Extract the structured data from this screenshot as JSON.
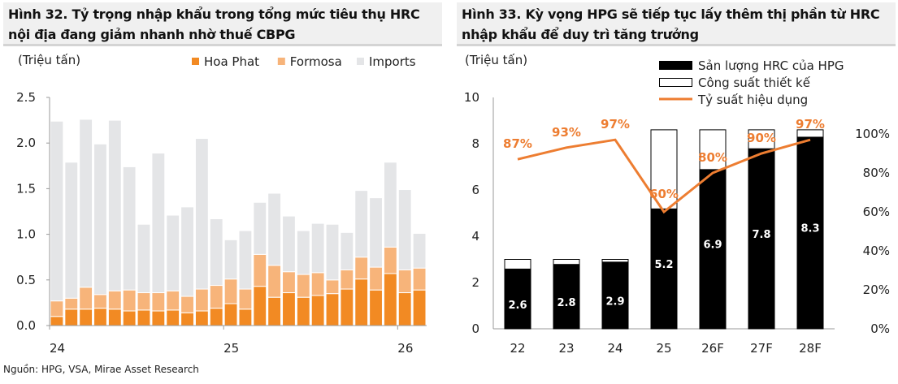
{
  "left": {
    "title_line1": "Hình 32. Tỷ trọng nhập khẩu trong tổng mức tiêu thụ HRC",
    "title_line2": "nội địa đang giảm nhanh nhờ thuế CBPG"
  },
  "right": {
    "title_line1": "Hình 33. Kỳ vọng HPG sẽ tiếp tục lấy thêm thị phần từ HRC",
    "title_line2": "nhập khẩu để duy trì tăng trưởng"
  },
  "source": "Nguồn: HPG, VSA, Mirae Asset Research",
  "chart_data": [
    {
      "type": "bar",
      "stacked": true,
      "ylabel": "(Triệu tấn)",
      "ylim": [
        0,
        2.5
      ],
      "yticks": [
        "0.0",
        "0.5",
        "1.0",
        "1.5",
        "2.0",
        "2.5"
      ],
      "xtick_labels": [
        "24",
        "25",
        "26"
      ],
      "legend": "top",
      "colors": {
        "Hoa Phat": "#f28a23",
        "Formosa": "#f7b47a",
        "Imports": "#e4e5e7"
      },
      "categories": [
        "1/24",
        "2/24",
        "3/24",
        "4/24",
        "5/24",
        "6/24",
        "7/24",
        "8/24",
        "9/24",
        "10/24",
        "11/24",
        "12/24",
        "1/25",
        "2/25",
        "3/25",
        "4/25",
        "5/25",
        "6/25",
        "7/25",
        "8/25",
        "9/25",
        "10/25",
        "11/25",
        "12/25",
        "1/26",
        "2/26"
      ],
      "series": [
        {
          "name": "Hoa Phat",
          "values": [
            0.1,
            0.18,
            0.18,
            0.19,
            0.18,
            0.16,
            0.17,
            0.16,
            0.17,
            0.14,
            0.16,
            0.19,
            0.24,
            0.18,
            0.43,
            0.31,
            0.36,
            0.31,
            0.33,
            0.35,
            0.4,
            0.51,
            0.39,
            0.57,
            0.36,
            0.39
          ]
        },
        {
          "name": "Formosa",
          "values": [
            0.17,
            0.12,
            0.24,
            0.15,
            0.2,
            0.23,
            0.19,
            0.2,
            0.21,
            0.18,
            0.24,
            0.25,
            0.27,
            0.22,
            0.35,
            0.35,
            0.23,
            0.25,
            0.25,
            0.15,
            0.21,
            0.24,
            0.25,
            0.29,
            0.25,
            0.24
          ]
        },
        {
          "name": "Imports",
          "values": [
            1.97,
            1.49,
            1.84,
            1.65,
            1.87,
            1.35,
            0.75,
            1.53,
            0.83,
            0.98,
            1.65,
            0.73,
            0.43,
            0.64,
            0.57,
            0.79,
            0.61,
            0.48,
            0.54,
            0.61,
            0.41,
            0.73,
            0.76,
            0.93,
            0.88,
            0.38
          ]
        }
      ]
    },
    {
      "type": "bar+line",
      "ylabel": "(Triệu tấn)",
      "ylim": [
        0,
        10
      ],
      "y2lim": [
        0,
        120
      ],
      "yticks": [
        "0",
        "2",
        "4",
        "6",
        "8",
        "10"
      ],
      "y2ticks": [
        "0%",
        "20%",
        "40%",
        "60%",
        "80%",
        "100%",
        "120%"
      ],
      "legend": "top-right",
      "categories": [
        "22",
        "23",
        "24",
        "25",
        "26F",
        "27F",
        "28F"
      ],
      "series": [
        {
          "name": "Sản lượng HRC của HPG",
          "kind": "bar",
          "color": "#000000",
          "values": [
            2.6,
            2.8,
            2.9,
            5.2,
            6.9,
            7.8,
            8.3
          ],
          "labels": [
            "2.6",
            "2.8",
            "2.9",
            "5.2",
            "6.9",
            "7.8",
            "8.3"
          ]
        },
        {
          "name": "Công suất thiết kế",
          "kind": "bar",
          "color": "#ffffff",
          "values": [
            3.0,
            3.0,
            3.0,
            8.6,
            8.6,
            8.6,
            8.6
          ]
        },
        {
          "name": "Tỷ suất hiệu dụng",
          "kind": "line",
          "axis": "right",
          "color": "#ed7d31",
          "values": [
            87,
            93,
            97,
            60,
            80,
            90,
            97
          ],
          "labels": [
            "87%",
            "93%",
            "97%",
            "60%",
            "80%",
            "90%",
            "97%"
          ]
        }
      ]
    }
  ]
}
